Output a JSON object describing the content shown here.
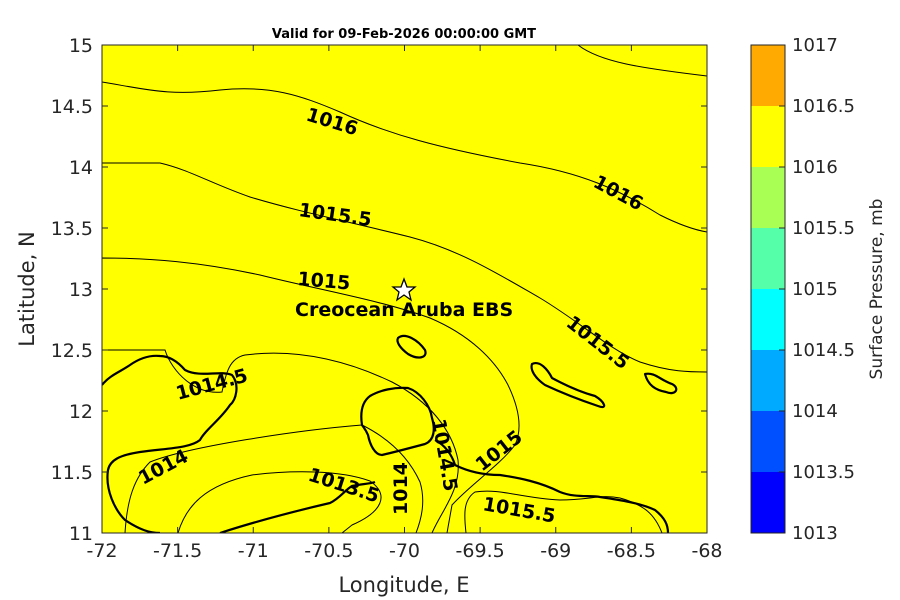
{
  "chart_data": {
    "type": "contour",
    "title": "Valid for 09-Feb-2026 00:00:00 GMT",
    "xlabel": "Longitude, E",
    "ylabel": "Latitude, N",
    "xlim": [
      -72,
      -68
    ],
    "ylim": [
      11,
      15
    ],
    "xticks": [
      "-72",
      "-71.5",
      "-71",
      "-70.5",
      "-70",
      "-69.5",
      "-69",
      "-68.5",
      "-68"
    ],
    "yticks": [
      "11",
      "11.5",
      "12",
      "12.5",
      "13",
      "13.5",
      "14",
      "14.5",
      "15"
    ],
    "colorbar": {
      "label": "Surface Pressure, mb",
      "levels": [
        "1013",
        "1013.5",
        "1014",
        "1014.5",
        "1015",
        "1015.5",
        "1016",
        "1016.5",
        "1017"
      ],
      "colors": [
        "#0000ff",
        "#0050ff",
        "#00aaff",
        "#00ffff",
        "#55ffaa",
        "#aaff55",
        "#ffff00",
        "#ffaa00",
        "#ff5500"
      ]
    },
    "contour_labels": [
      "1016",
      "1016",
      "1015.5",
      "1015.5",
      "1015",
      "1014.5",
      "1014",
      "1013.5",
      "1014",
      "1014.5",
      "1015",
      "1015.5"
    ],
    "marker": {
      "name": "Creocean Aruba EBS",
      "lon": -70,
      "lat": 13
    }
  }
}
